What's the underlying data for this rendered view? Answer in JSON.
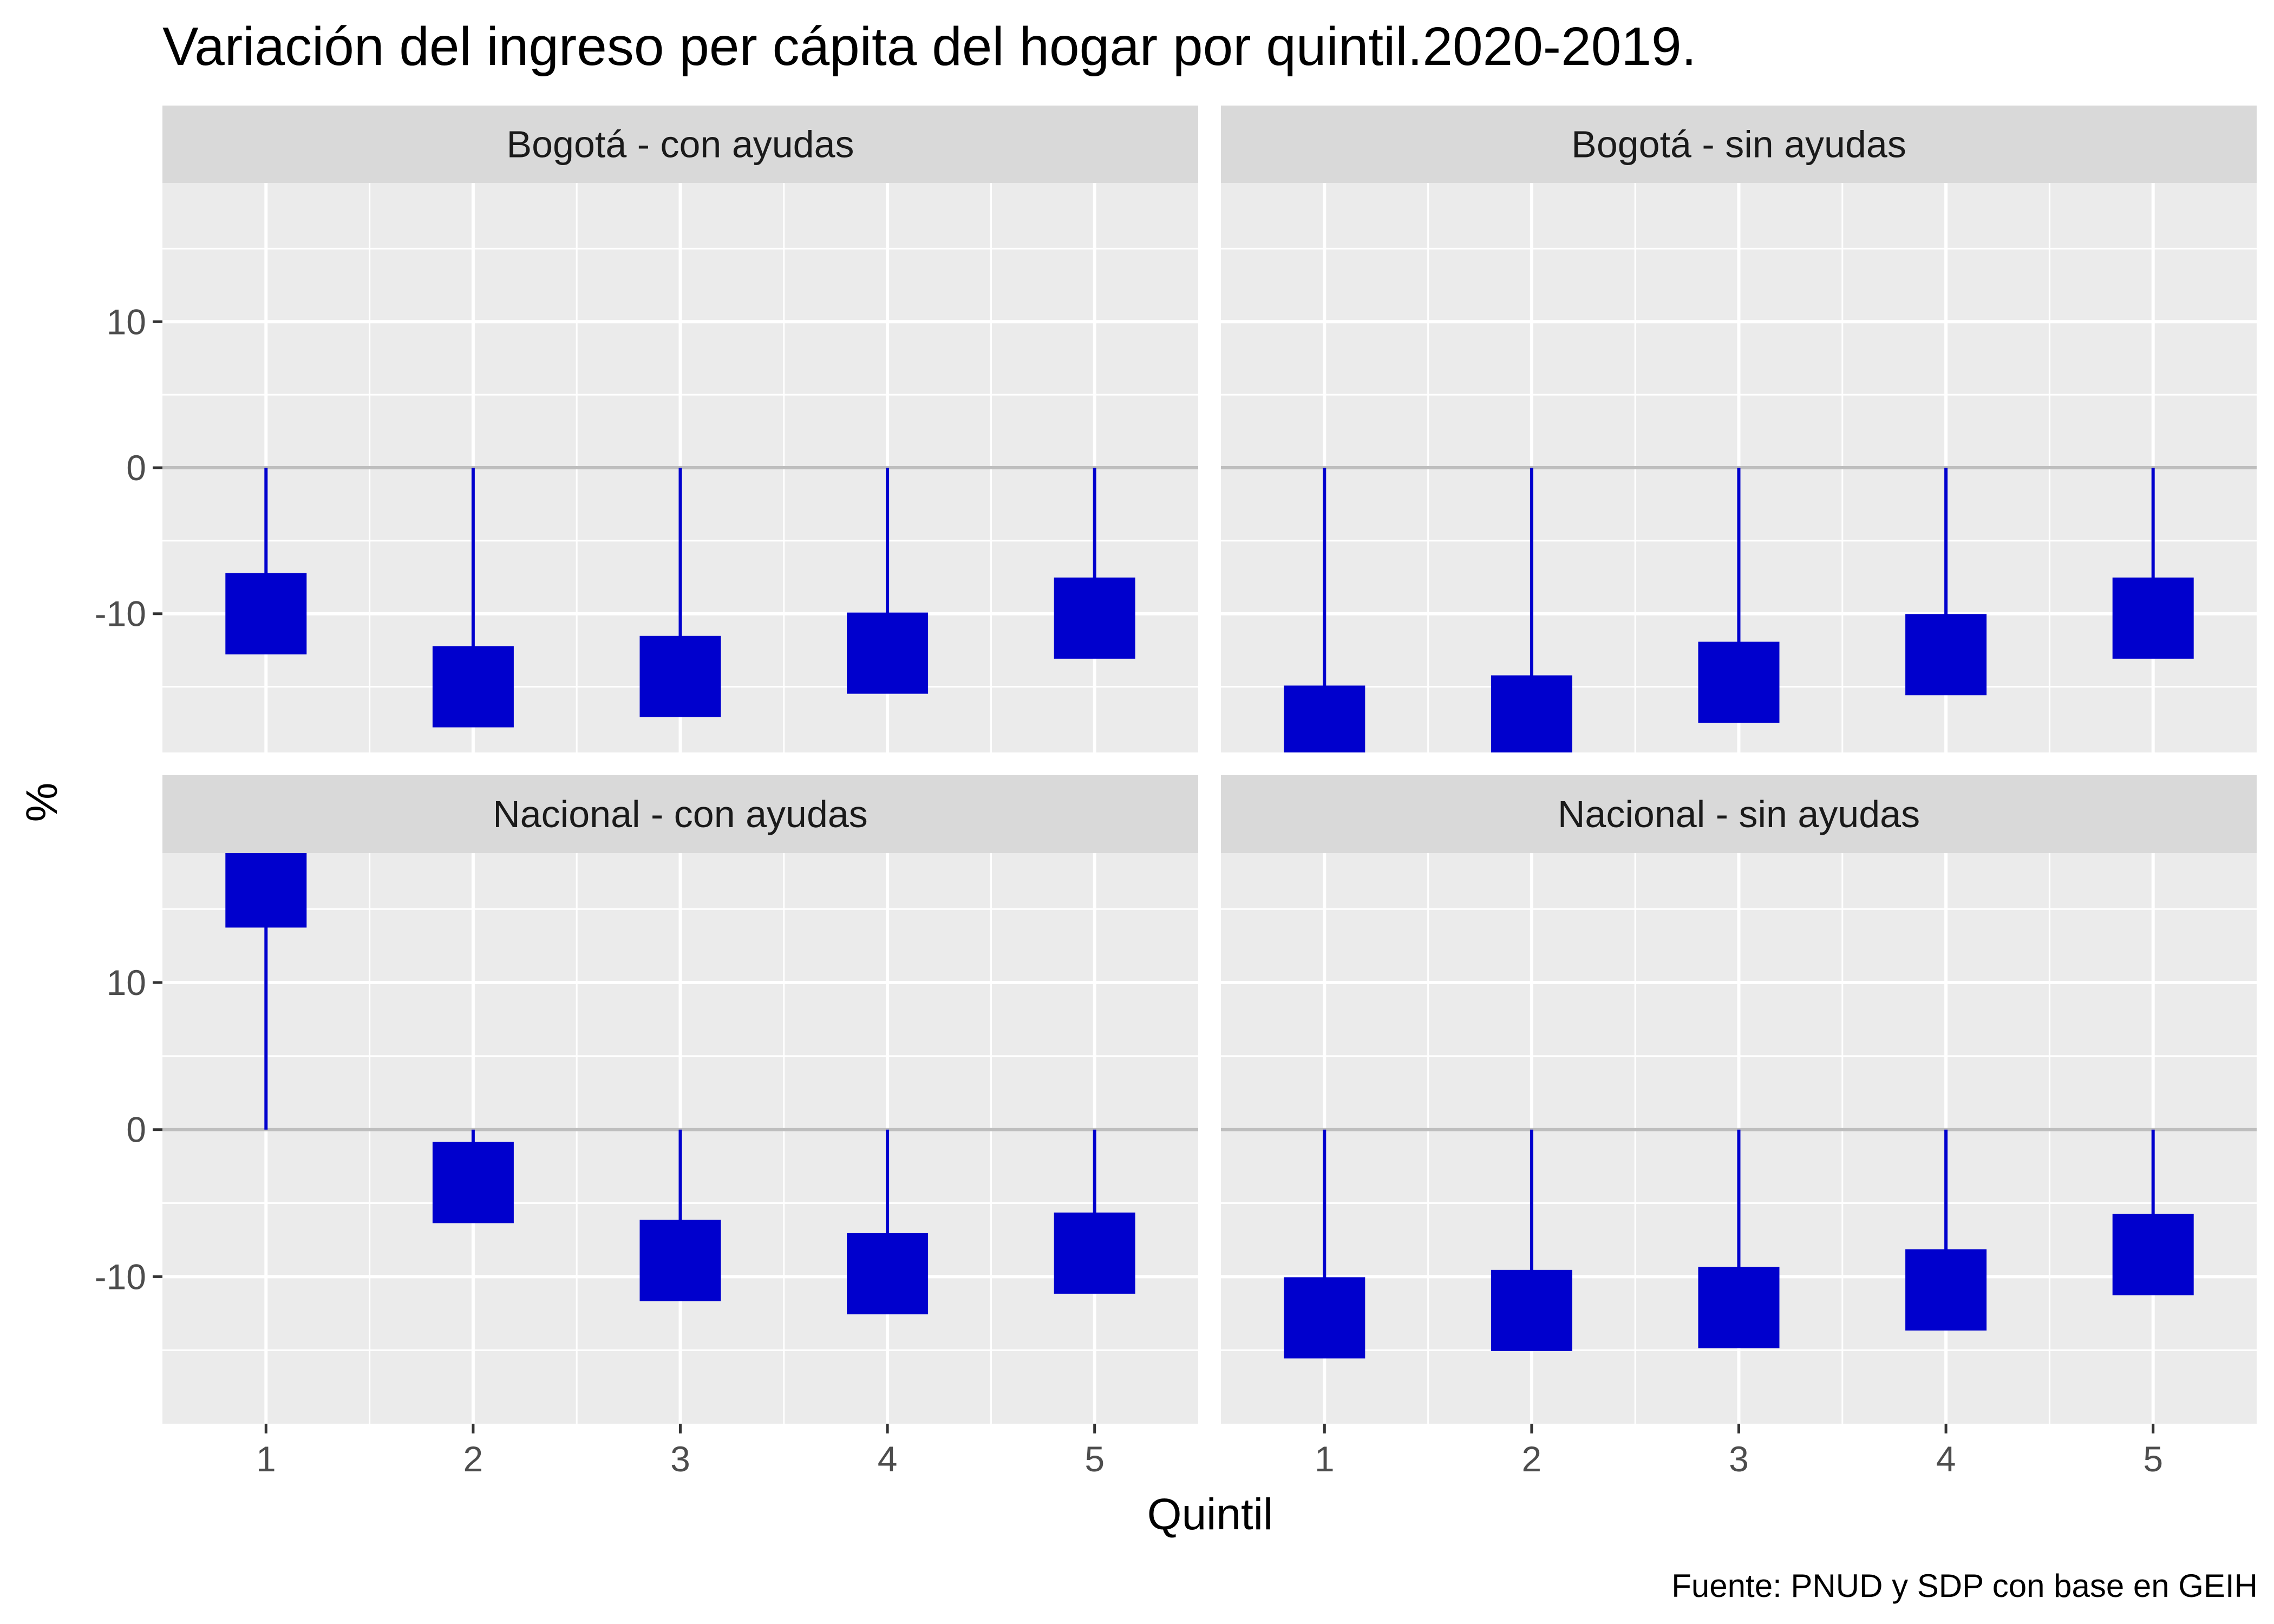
{
  "title": "Variación del ingreso per cápita del hogar por quintil.2020-2019.",
  "caption": "Fuente: PNUD y SDP con base en GEIH",
  "colors": {
    "panel_bg": "#EBEBEB",
    "strip_bg": "#D9D9D9",
    "grid": "#FFFFFF",
    "zero_line": "#BEBEBE",
    "mark": "#0000CD",
    "tick_text": "#4D4D4D"
  },
  "chart_data": {
    "type": "lollipop",
    "xlabel": "Quintil",
    "ylabel": "%",
    "categories": [
      "1",
      "2",
      "3",
      "4",
      "5"
    ],
    "y_ticks": [
      -10,
      0,
      10
    ],
    "facets": [
      {
        "label": "Bogotá - con ayudas",
        "row": 0,
        "col": 0,
        "ylim": [
          -19.5,
          19.5
        ],
        "values": [
          -10,
          -15,
          -14.3,
          -12.7,
          -10.3
        ]
      },
      {
        "label": "Bogotá - sin ayudas",
        "row": 0,
        "col": 1,
        "ylim": [
          -19.5,
          19.5
        ],
        "values": [
          -17.7,
          -17,
          -14.7,
          -12.8,
          -10.3
        ]
      },
      {
        "label": "Nacional - con ayudas",
        "row": 1,
        "col": 0,
        "ylim": [
          -20,
          18.8
        ],
        "values": [
          16.5,
          -3.6,
          -8.9,
          -9.8,
          -8.4
        ]
      },
      {
        "label": "Nacional - sin ayudas",
        "row": 1,
        "col": 1,
        "ylim": [
          -20,
          18.8
        ],
        "values": [
          -12.8,
          -12.3,
          -12.1,
          -10.9,
          -8.5
        ]
      }
    ]
  }
}
